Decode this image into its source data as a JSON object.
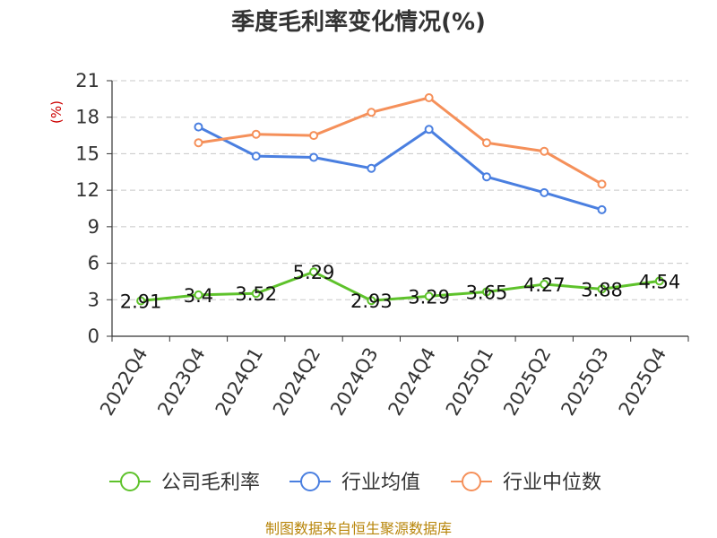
{
  "chart_data": {
    "type": "line",
    "title": "季度毛利率变化情况(%)",
    "ylabel": "(%)",
    "ylim": [
      0,
      21
    ],
    "yticks": [
      0,
      3,
      6,
      9,
      12,
      15,
      18,
      21
    ],
    "grid": true,
    "legend_position": "bottom",
    "categories": [
      "2022Q4",
      "2023Q4",
      "2024Q1",
      "2024Q2",
      "2024Q3",
      "2024Q4",
      "2025Q1",
      "2025Q2",
      "2025Q3",
      "2025Q4"
    ],
    "series": [
      {
        "name": "公司毛利率",
        "color": "#5ec22b",
        "show_labels": true,
        "values": [
          2.91,
          3.4,
          3.52,
          5.29,
          2.93,
          3.29,
          3.65,
          4.27,
          3.88,
          4.54
        ]
      },
      {
        "name": "行业均值",
        "color": "#4a7fe0",
        "show_labels": false,
        "values": [
          null,
          17.2,
          14.8,
          14.7,
          13.8,
          17.0,
          13.1,
          11.8,
          10.4,
          null
        ]
      },
      {
        "name": "行业中位数",
        "color": "#f5905a",
        "show_labels": false,
        "values": [
          null,
          15.9,
          16.6,
          16.5,
          18.4,
          19.6,
          15.9,
          15.2,
          12.5,
          null
        ]
      }
    ]
  },
  "source": "制图数据来自恒生聚源数据库"
}
